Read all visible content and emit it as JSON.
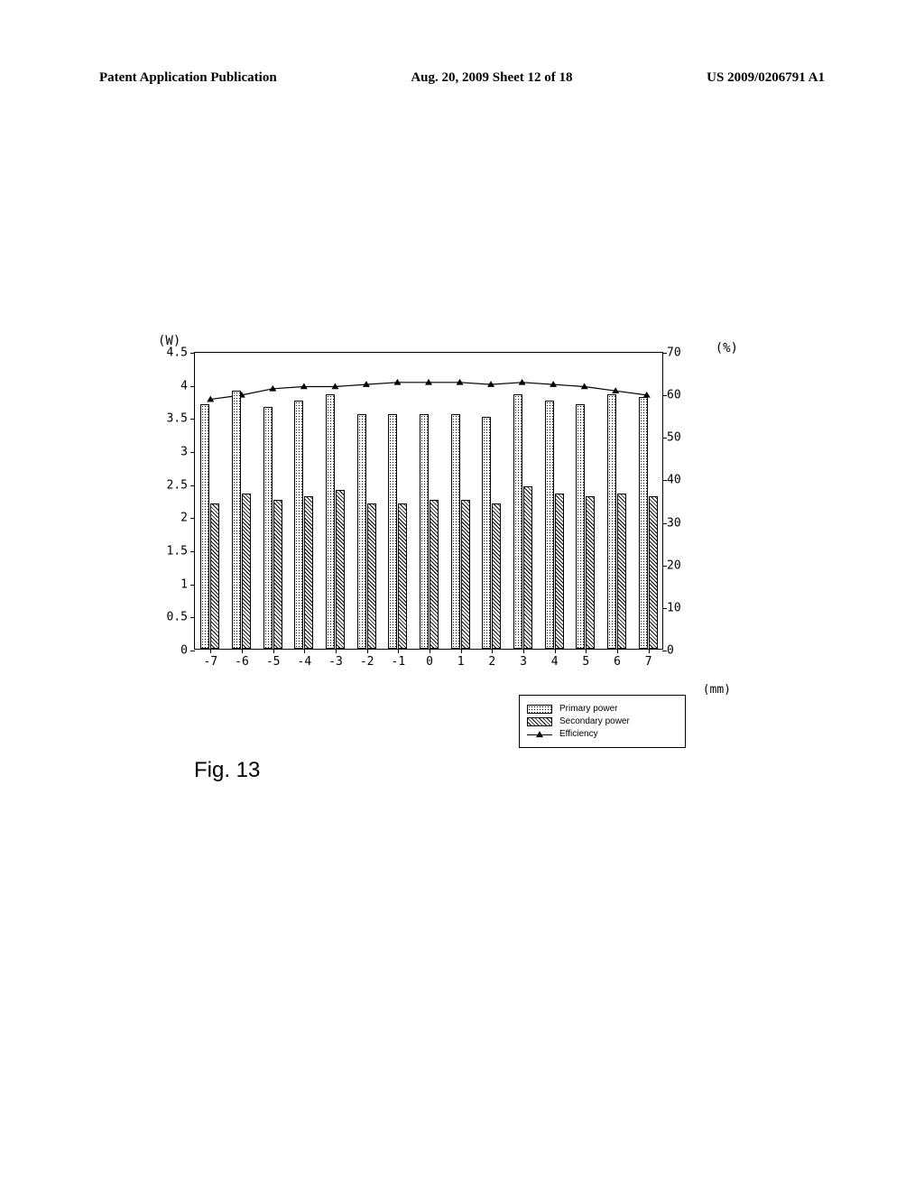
{
  "header": {
    "left": "Patent Application Publication",
    "center": "Aug. 20, 2009  Sheet 12 of 18",
    "right": "US 2009/0206791 A1"
  },
  "figure_label": "Fig. 13",
  "chart": {
    "type": "bar+line",
    "left_axis": {
      "unit": "(W)",
      "min": 0,
      "max": 4.5,
      "ticks": [
        0,
        0.5,
        1,
        1.5,
        2,
        2.5,
        3,
        3.5,
        4,
        4.5
      ],
      "tick_labels": [
        "0",
        "0.5",
        "1",
        "1.5",
        "2",
        "2.5",
        "3",
        "3.5",
        "4",
        "4.5"
      ]
    },
    "right_axis": {
      "unit": "(%)",
      "min": 0,
      "max": 70,
      "ticks": [
        0,
        10,
        20,
        30,
        40,
        50,
        60,
        70
      ],
      "tick_labels": [
        "0",
        "10",
        "20",
        "30",
        "40",
        "50",
        "60",
        "70"
      ]
    },
    "x_axis": {
      "unit": "(mm)",
      "categories": [
        -7,
        -6,
        -5,
        -4,
        -3,
        -2,
        -1,
        0,
        1,
        2,
        3,
        4,
        5,
        6,
        7
      ],
      "labels": [
        "-7",
        "-6",
        "-5",
        "-4",
        "-3",
        "-2",
        "-1",
        "0",
        "1",
        "2",
        "3",
        "4",
        "5",
        "6",
        "7"
      ]
    },
    "series": {
      "primary_power": {
        "label": "Primary power",
        "values": [
          3.7,
          3.9,
          3.65,
          3.75,
          3.85,
          3.55,
          3.55,
          3.55,
          3.55,
          3.5,
          3.85,
          3.75,
          3.7,
          3.85,
          3.8
        ],
        "fill": "dotted",
        "border_color": "#000000"
      },
      "secondary_power": {
        "label": "Secondary power",
        "values": [
          2.2,
          2.35,
          2.25,
          2.3,
          2.4,
          2.2,
          2.2,
          2.25,
          2.25,
          2.2,
          2.45,
          2.35,
          2.3,
          2.35,
          2.3
        ],
        "fill": "hatched",
        "border_color": "#000000"
      },
      "efficiency": {
        "label": "Efficiency",
        "values": [
          59,
          60,
          61.5,
          62,
          62,
          62.5,
          63,
          63,
          63,
          62.5,
          63,
          62.5,
          62,
          61,
          60
        ],
        "marker": "triangle",
        "line_color": "#000000"
      }
    },
    "background_color": "#ffffff",
    "border_color": "#000000"
  },
  "legend": {
    "items": [
      {
        "label": "Primary power",
        "type": "swatch",
        "fill": "dotted"
      },
      {
        "label": "Secondary power",
        "type": "swatch",
        "fill": "hatched"
      },
      {
        "label": "Efficiency",
        "type": "line-triangle"
      }
    ]
  }
}
